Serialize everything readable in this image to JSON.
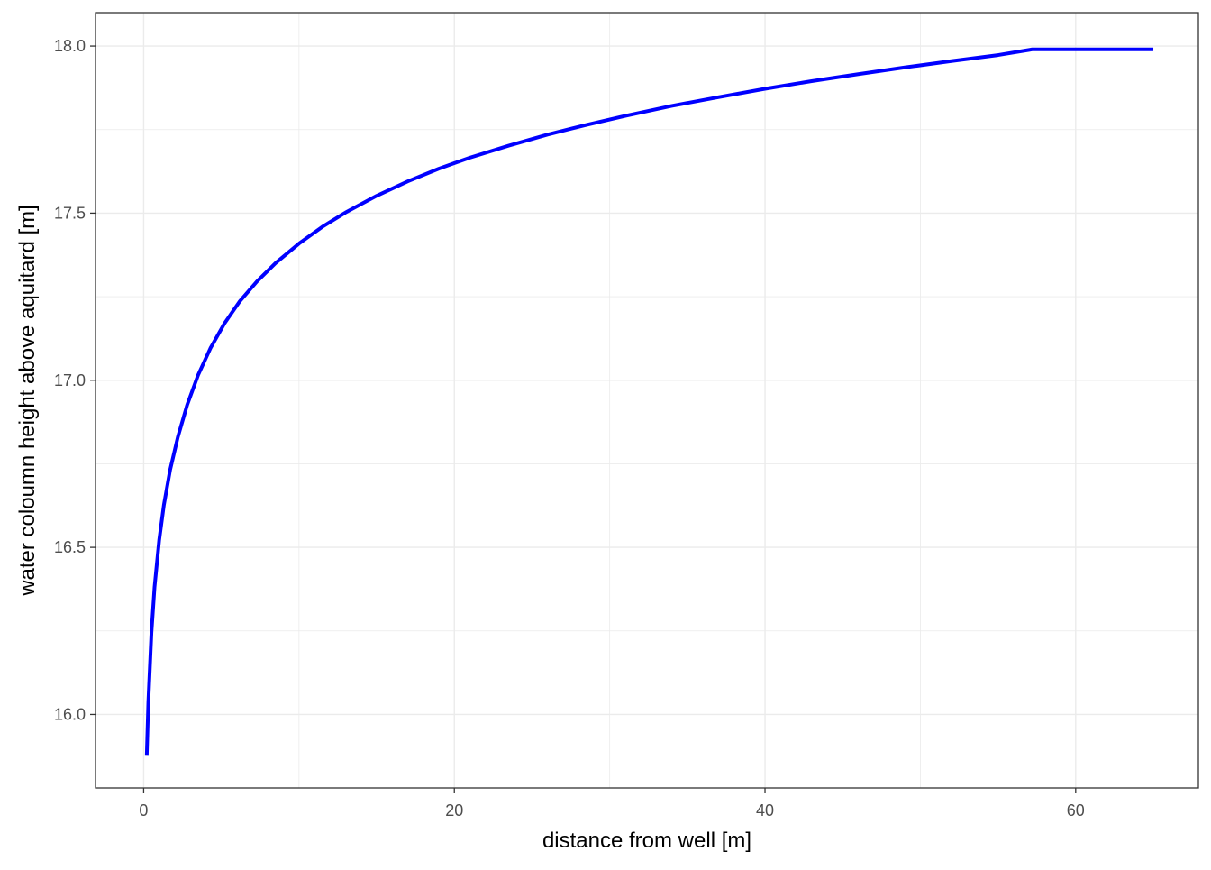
{
  "chart_data": {
    "type": "line",
    "title": "",
    "xlabel": "distance from well [m]",
    "ylabel": "water coloumn height above aquitard [m]",
    "xlim": [
      -3.1,
      67.9
    ],
    "ylim": [
      15.78,
      18.1
    ],
    "x_ticks": [
      0,
      20,
      40,
      60
    ],
    "x_tick_labels": [
      "0",
      "20",
      "40",
      "60"
    ],
    "y_ticks": [
      16.0,
      16.5,
      17.0,
      17.5,
      18.0
    ],
    "y_tick_labels": [
      "16.0",
      "16.5",
      "17.0",
      "17.5",
      "18.0"
    ],
    "grid": true,
    "legend": "none",
    "line_color": "#0000ff",
    "series": [
      {
        "x": [
          0.2,
          0.3,
          0.5,
          0.7,
          1.0,
          1.3,
          1.7,
          2.2,
          2.8,
          3.5,
          4.3,
          5.2,
          6.2,
          7.3,
          8.5,
          10,
          11.5,
          13,
          15,
          17,
          19,
          21,
          23.5,
          26,
          28.5,
          31,
          34,
          37,
          40,
          43,
          46,
          49,
          52,
          55,
          57.2,
          65
        ],
        "y": [
          15.879,
          16.037,
          16.244,
          16.381,
          16.522,
          16.626,
          16.731,
          16.83,
          16.926,
          17.015,
          17.096,
          17.17,
          17.237,
          17.296,
          17.351,
          17.409,
          17.459,
          17.502,
          17.552,
          17.595,
          17.633,
          17.666,
          17.702,
          17.735,
          17.764,
          17.791,
          17.821,
          17.847,
          17.872,
          17.895,
          17.916,
          17.936,
          17.955,
          17.973,
          17.99,
          17.99
        ]
      }
    ]
  }
}
